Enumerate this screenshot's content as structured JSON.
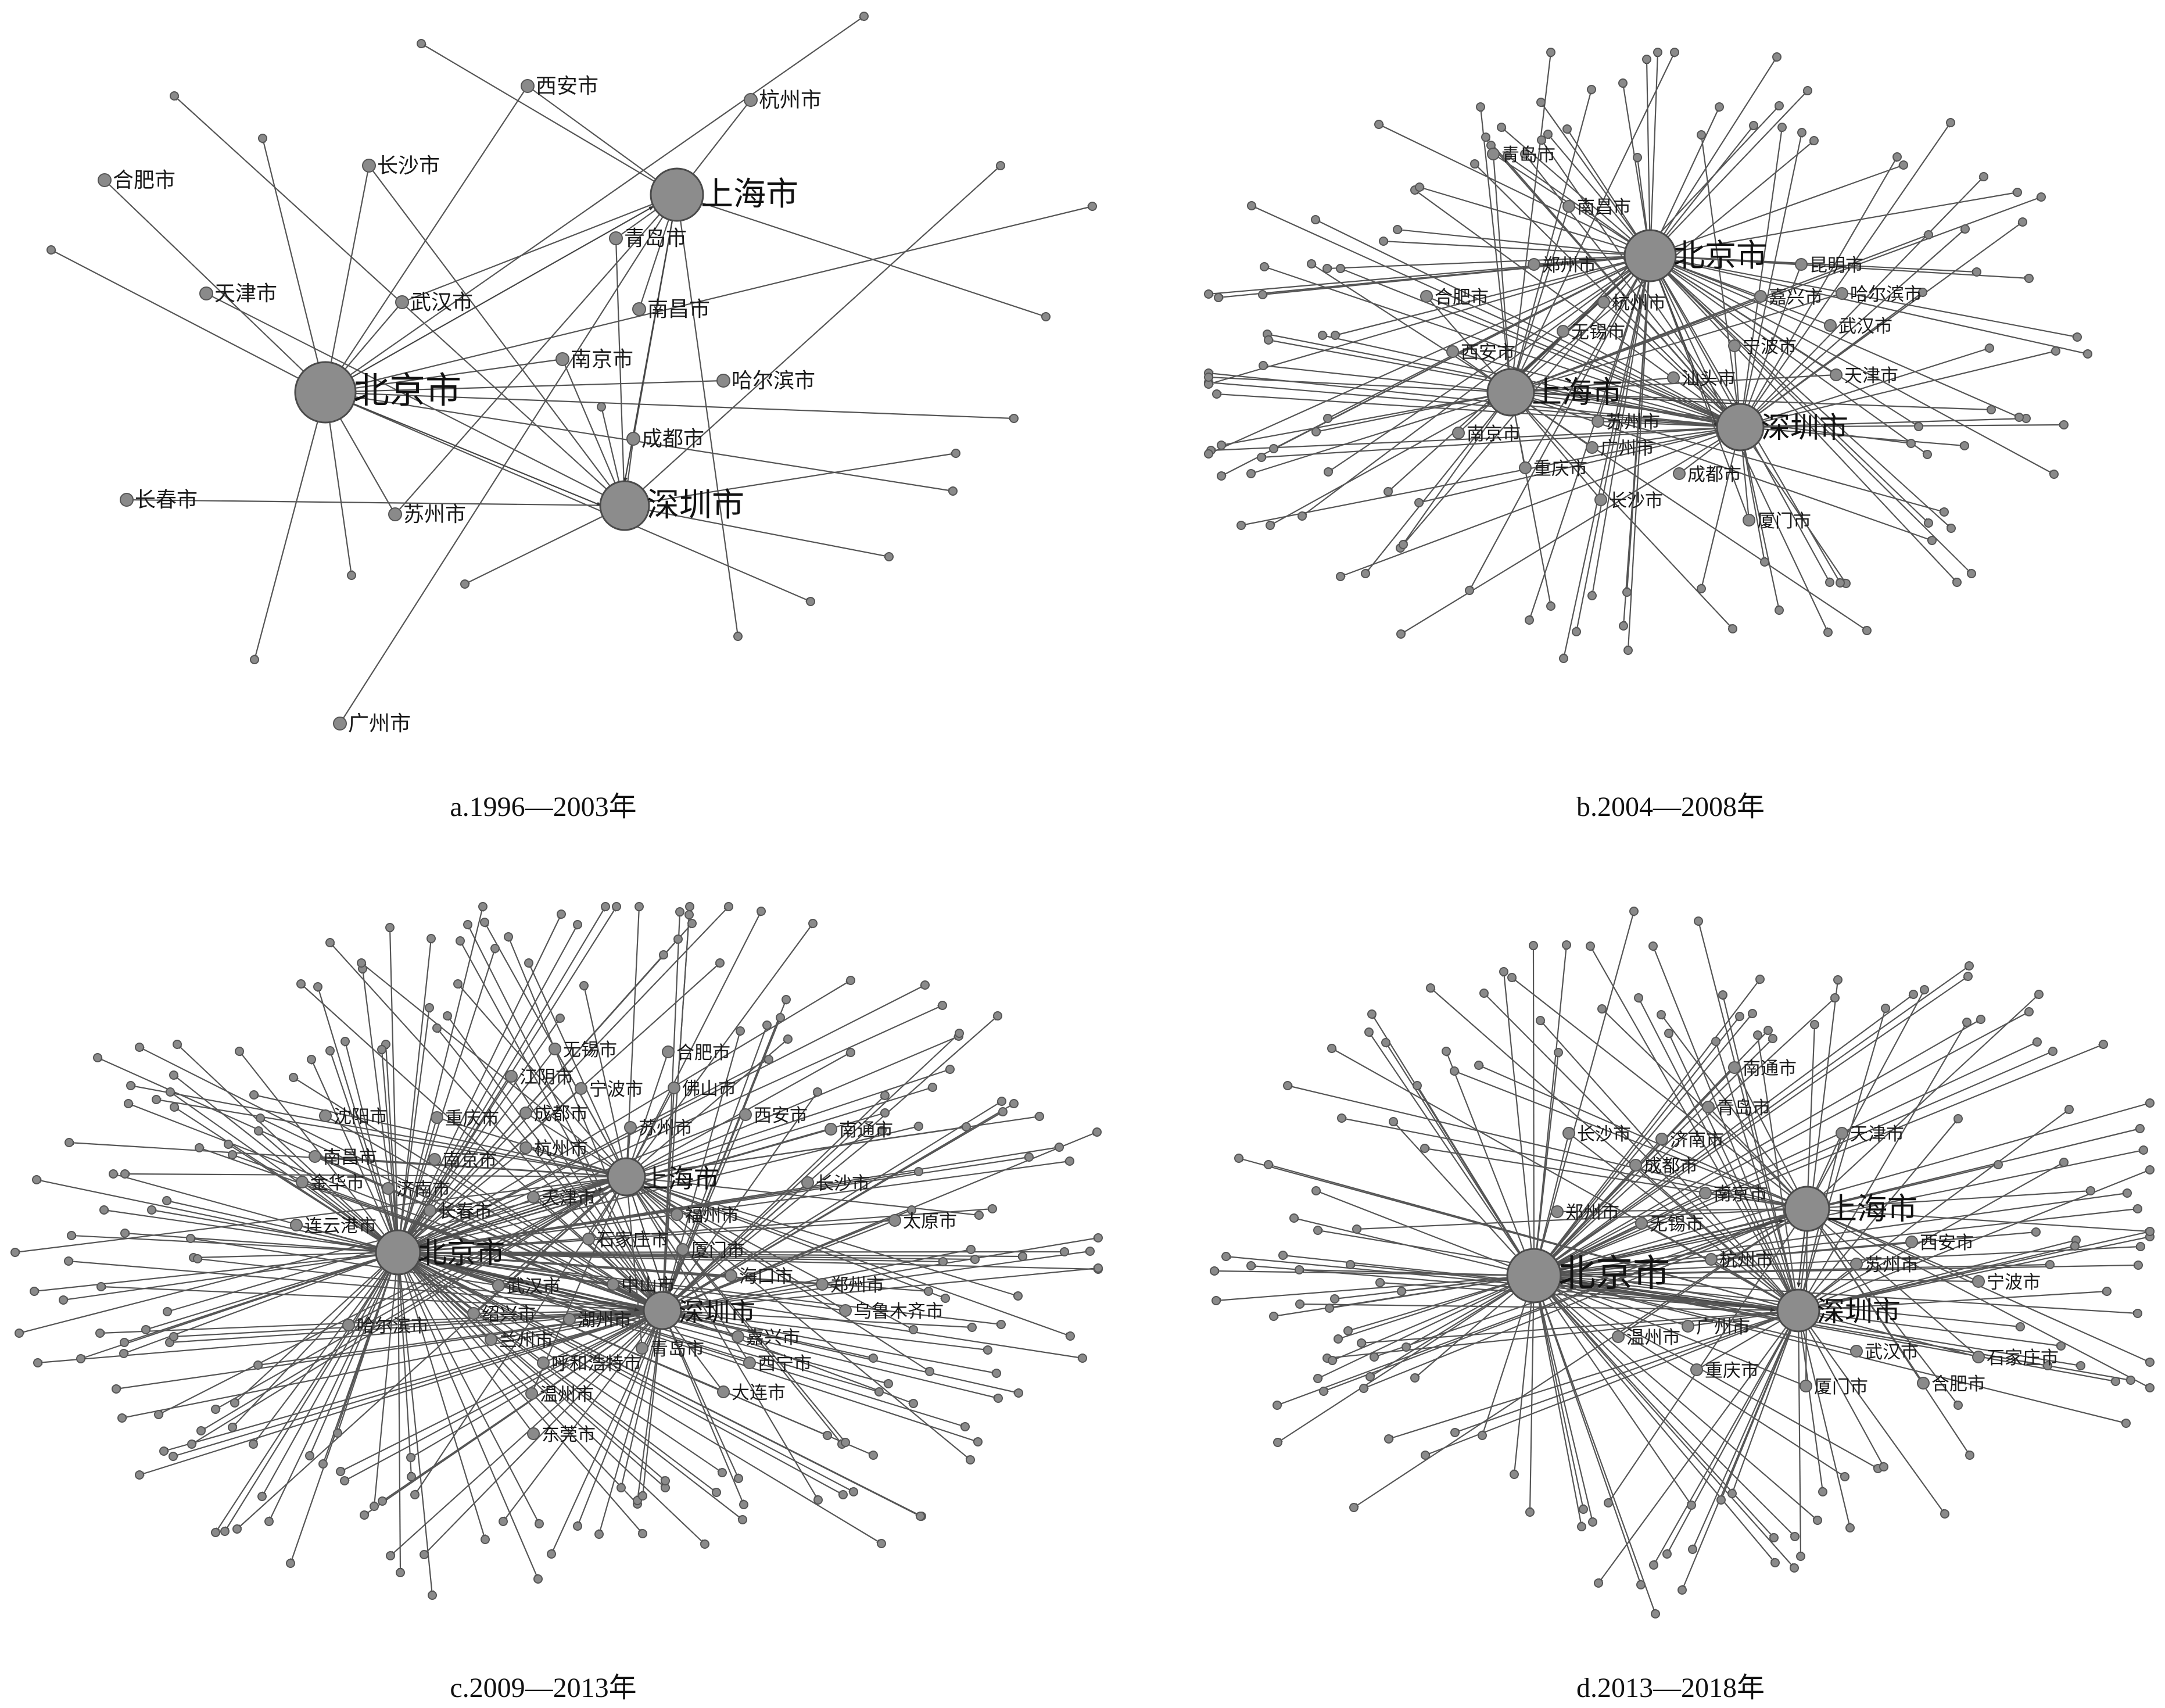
{
  "panels": [
    {
      "id": "a",
      "caption": "a.1996—2003年",
      "hubs": [
        "北京市",
        "上海市",
        "深圳市"
      ],
      "labels": [
        "西安市",
        "杭州市",
        "长沙市",
        "合肥市",
        "青岛市",
        "天津市",
        "武汉市",
        "南昌市",
        "南京市",
        "哈尔滨市",
        "成都市",
        "长春市",
        "苏州市",
        "广州市"
      ]
    },
    {
      "id": "b",
      "caption": "b.2004—2008年",
      "hubs": [
        "北京市",
        "上海市",
        "深圳市"
      ],
      "labels": [
        "青岛市",
        "南昌市",
        "昆明市",
        "郑州市",
        "合肥市",
        "杭州市",
        "嘉兴市",
        "哈尔滨市",
        "无锡市",
        "武汉市",
        "西安市",
        "宁波市",
        "天津市",
        "汕头市",
        "苏州市",
        "南京市",
        "广州市",
        "成都市",
        "重庆市",
        "长沙市",
        "厦门市"
      ]
    },
    {
      "id": "c",
      "caption": "c.2009—2013年",
      "hubs": [
        "北京市",
        "上海市",
        "深圳市"
      ],
      "labels": [
        "无锡市",
        "合肥市",
        "江阴市",
        "宁波市",
        "佛山市",
        "沈阳市",
        "重庆市",
        "成都市",
        "西安市",
        "南通市",
        "南昌市",
        "南京市",
        "杭州市",
        "苏州市",
        "金华市",
        "济南市",
        "天津市",
        "长沙市",
        "长春市",
        "福州市",
        "太原市",
        "连云港市",
        "石家庄市",
        "厦门市",
        "海口市",
        "武汉市",
        "中山市",
        "郑州市",
        "绍兴市",
        "湖州市",
        "乌鲁木齐市",
        "哈尔滨市",
        "兰州市",
        "嘉兴市",
        "青岛市",
        "呼和浩特市",
        "西宁市",
        "温州市",
        "大连市",
        "东莞市"
      ]
    },
    {
      "id": "d",
      "caption": "d.2013—2018年",
      "hubs": [
        "北京市",
        "上海市",
        "深圳市"
      ],
      "labels": [
        "南通市",
        "青岛市",
        "长沙市",
        "济南市",
        "天津市",
        "成都市",
        "南京市",
        "郑州市",
        "无锡市",
        "西安市",
        "杭州市",
        "苏州市",
        "宁波市",
        "温州市",
        "广州市",
        "武汉市",
        "石家庄市",
        "重庆市",
        "厦门市",
        "合肥市"
      ]
    }
  ]
}
